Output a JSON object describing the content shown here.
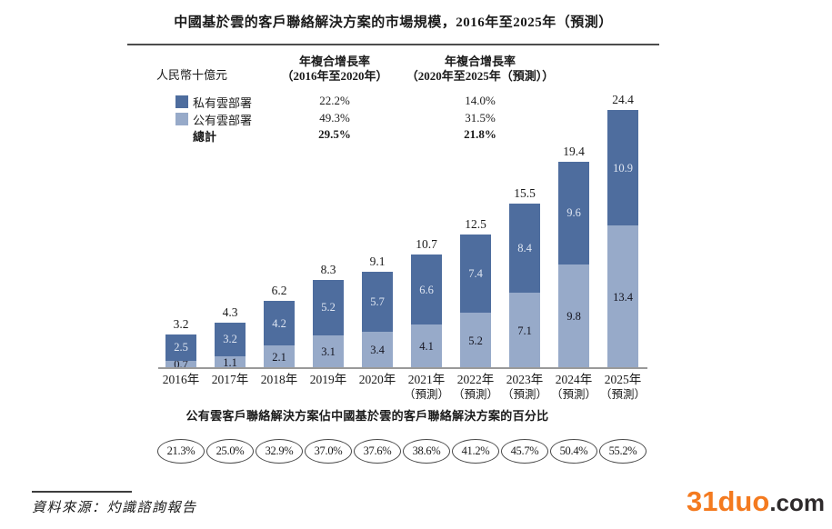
{
  "title": "中國基於雲的客戶聯絡解決方案的市場規模，2016年至2025年（預測）",
  "unit_label": "人民幣十億元",
  "colors": {
    "private_cloud": "#4e6d9e",
    "public_cloud": "#97aac9",
    "axis": "#9a9a9a",
    "watermark_orange": "#f47a1f"
  },
  "cagr_table": {
    "col1_header_line1": "年複合增長率",
    "col1_header_line2": "（2016年至2020年）",
    "col2_header_line1": "年複合增長率",
    "col2_header_line2": "（2020年至2025年（預測））",
    "rows": [
      {
        "label": "私有雲部署",
        "swatch": "private_cloud",
        "col1": "22.2%",
        "col2": "14.0%",
        "bold": false
      },
      {
        "label": "公有雲部署",
        "swatch": "public_cloud",
        "col1": "49.3%",
        "col2": "31.5%",
        "bold": false
      },
      {
        "label": "總計",
        "swatch": null,
        "col1": "29.5%",
        "col2": "21.8%",
        "bold": true
      }
    ]
  },
  "chart_data": {
    "type": "bar",
    "stacked": true,
    "title": "中國基於雲的客戶聯絡解決方案的市場規模，2016年至2025年（預測）",
    "ylabel": "人民幣十億元",
    "ylim": [
      0,
      24.4
    ],
    "grid": false,
    "legend_position": "top-left",
    "categories": [
      {
        "year": "2016年",
        "note": ""
      },
      {
        "year": "2017年",
        "note": ""
      },
      {
        "year": "2018年",
        "note": ""
      },
      {
        "year": "2019年",
        "note": ""
      },
      {
        "year": "2020年",
        "note": ""
      },
      {
        "year": "2021年",
        "note": "（預測）"
      },
      {
        "year": "2022年",
        "note": "（預測）"
      },
      {
        "year": "2023年",
        "note": "（預測）"
      },
      {
        "year": "2024年",
        "note": "（預測）"
      },
      {
        "year": "2025年",
        "note": "（預測）"
      }
    ],
    "series": [
      {
        "name": "公有雲部署",
        "color": "#97aac9",
        "position": "bottom",
        "values": [
          0.7,
          1.1,
          2.1,
          3.1,
          3.4,
          4.1,
          5.2,
          7.1,
          9.8,
          13.4
        ]
      },
      {
        "name": "私有雲部署",
        "color": "#4e6d9e",
        "position": "top",
        "values": [
          2.5,
          3.2,
          4.2,
          5.2,
          5.7,
          6.6,
          7.4,
          8.4,
          9.6,
          10.9
        ]
      }
    ],
    "totals": [
      3.2,
      4.3,
      6.2,
      8.3,
      9.1,
      10.7,
      12.5,
      15.5,
      19.4,
      24.4
    ]
  },
  "share_row": {
    "caption": "公有雲客戶聯絡解決方案佔中國基於雲的客戶聯絡解決方案的百分比",
    "values": [
      "21.3%",
      "25.0%",
      "32.9%",
      "37.0%",
      "37.6%",
      "38.6%",
      "41.2%",
      "45.7%",
      "50.4%",
      "55.2%"
    ]
  },
  "footer": {
    "source": "資料來源：灼識諮詢報告"
  },
  "watermark": {
    "brand": "31duo",
    "suffix": ".com"
  }
}
